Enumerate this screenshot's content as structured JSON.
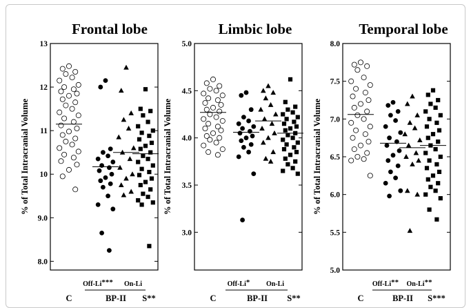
{
  "chart_data": [
    {
      "type": "scatter",
      "title": "Frontal lobe",
      "ylabel": "% of Total Intracranial Volume",
      "ylim": [
        7.8,
        13
      ],
      "yticks": [
        "8.0",
        "9.0",
        "10",
        "11",
        "12",
        "13"
      ],
      "group_labels": {
        "c": "C",
        "bp": "BP-II",
        "s": "S",
        "s_sig": "**",
        "off": "Off-Li",
        "off_sig": "***",
        "on": "On-Li",
        "on_sig": ""
      },
      "series": [
        {
          "name": "C",
          "marker": "open-circle",
          "mean": 11.15,
          "values": [
            12.48,
            12.42,
            12.35,
            12.3,
            12.22,
            12.15,
            12.05,
            12.0,
            11.95,
            11.9,
            11.85,
            11.8,
            11.72,
            11.65,
            11.58,
            11.5,
            11.42,
            11.35,
            11.28,
            11.2,
            11.12,
            11.05,
            10.98,
            10.9,
            10.82,
            10.75,
            10.68,
            10.6,
            10.52,
            10.45,
            10.38,
            10.3,
            10.22,
            10.1,
            9.95,
            9.65
          ]
        },
        {
          "name": "Off-Li",
          "marker": "filled-circle",
          "mean": 10.17,
          "values": [
            12.15,
            12.0,
            10.58,
            10.5,
            10.42,
            10.35,
            10.28,
            10.2,
            10.15,
            10.08,
            10.0,
            9.92,
            9.85,
            9.78,
            9.7,
            9.5,
            9.3,
            9.2,
            8.65,
            8.25
          ]
        },
        {
          "name": "On-Li",
          "marker": "filled-triangle",
          "mean": 10.5,
          "values": [
            12.45,
            11.92,
            11.4,
            11.25,
            11.05,
            10.85,
            10.6,
            10.5,
            10.35,
            10.15,
            10.0,
            9.9,
            9.75,
            9.6,
            9.52
          ]
        },
        {
          "name": "S",
          "marker": "filled-square",
          "mean": 10.47,
          "values": [
            11.95,
            11.5,
            11.45,
            11.35,
            11.2,
            11.1,
            11.0,
            10.95,
            10.88,
            10.8,
            10.72,
            10.65,
            10.58,
            10.5,
            10.42,
            10.35,
            10.28,
            10.2,
            10.12,
            10.05,
            9.98,
            9.9,
            9.82,
            9.75,
            9.65,
            9.55,
            9.48,
            9.4,
            9.35,
            9.3,
            8.35
          ]
        }
      ]
    },
    {
      "type": "scatter",
      "title": "Limbic lobe",
      "ylabel": "% of Total Intracranial Volume",
      "ylim": [
        2.6,
        5
      ],
      "yticks": [
        "3.0",
        "3.5",
        "4.0",
        "4.5",
        "5.0"
      ],
      "group_labels": {
        "c": "C",
        "bp": "BP-II",
        "s": "S",
        "s_sig": "**",
        "off": "Off-Li",
        "off_sig": "*",
        "on": "On-Li",
        "on_sig": ""
      },
      "series": [
        {
          "name": "C",
          "marker": "open-circle",
          "mean": 4.27,
          "values": [
            4.62,
            4.58,
            4.55,
            4.52,
            4.5,
            4.47,
            4.45,
            4.42,
            4.4,
            4.37,
            4.35,
            4.32,
            4.3,
            4.28,
            4.25,
            4.22,
            4.2,
            4.18,
            4.15,
            4.12,
            4.1,
            4.08,
            4.05,
            4.02,
            4.0,
            3.98,
            3.95,
            3.92,
            3.88,
            3.85,
            3.82
          ]
        },
        {
          "name": "Off-Li",
          "marker": "filled-circle",
          "mean": 4.06,
          "values": [
            4.48,
            4.45,
            4.3,
            4.22,
            4.18,
            4.15,
            4.12,
            4.1,
            4.07,
            4.05,
            4.02,
            4.0,
            3.97,
            3.93,
            3.9,
            3.85,
            3.8,
            3.62,
            3.13
          ]
        },
        {
          "name": "On-Li",
          "marker": "filled-triangle",
          "mean": 4.18,
          "values": [
            4.55,
            4.5,
            4.48,
            4.42,
            4.35,
            4.3,
            4.25,
            4.2,
            4.15,
            4.1,
            4.05,
            4.0,
            3.95,
            3.85,
            3.78,
            3.75
          ]
        },
        {
          "name": "S",
          "marker": "filled-square",
          "mean": 4.05,
          "values": [
            4.62,
            4.38,
            4.33,
            4.3,
            4.27,
            4.25,
            4.22,
            4.2,
            4.17,
            4.15,
            4.12,
            4.1,
            4.08,
            4.05,
            4.03,
            4.0,
            3.98,
            3.95,
            3.93,
            3.9,
            3.88,
            3.85,
            3.82,
            3.78,
            3.75,
            3.72,
            3.68,
            3.65,
            3.62
          ]
        }
      ]
    },
    {
      "type": "scatter",
      "title": "Temporal lobe",
      "ylabel": "% of Total Intracranial Volume",
      "ylim": [
        5,
        8
      ],
      "yticks": [
        "5.0",
        "5.5",
        "6.0",
        "6.5",
        "7.0",
        "7.5",
        "8.0"
      ],
      "group_labels": {
        "c": "C",
        "bp": "BP-II",
        "s": "S",
        "s_sig": "***",
        "off": "Off-Li",
        "off_sig": "**",
        "on": "On-Li",
        "on_sig": "**"
      },
      "series": [
        {
          "name": "C",
          "marker": "open-circle",
          "mean": 7.06,
          "values": [
            7.75,
            7.72,
            7.7,
            7.65,
            7.55,
            7.5,
            7.45,
            7.4,
            7.35,
            7.3,
            7.25,
            7.2,
            7.15,
            7.1,
            7.05,
            7.0,
            6.95,
            6.9,
            6.85,
            6.8,
            6.75,
            6.7,
            6.65,
            6.6,
            6.55,
            6.5,
            6.47,
            6.45,
            6.25
          ]
        },
        {
          "name": "Off-Li",
          "marker": "filled-circle",
          "mean": 6.68,
          "values": [
            7.22,
            7.18,
            7.1,
            7.05,
            6.98,
            6.9,
            6.82,
            6.75,
            6.7,
            6.65,
            6.58,
            6.52,
            6.45,
            6.38,
            6.3,
            6.22,
            6.15,
            6.05,
            5.98
          ]
        },
        {
          "name": "On-Li",
          "marker": "filled-triangle",
          "mean": 6.62,
          "values": [
            7.3,
            7.2,
            7.05,
            6.95,
            6.88,
            6.8,
            6.72,
            6.65,
            6.55,
            6.5,
            6.45,
            6.4,
            6.05,
            6.0,
            5.52
          ]
        },
        {
          "name": "S",
          "marker": "filled-square",
          "mean": 6.65,
          "values": [
            7.38,
            7.32,
            7.25,
            7.2,
            7.15,
            7.1,
            7.05,
            7.0,
            6.95,
            6.9,
            6.85,
            6.8,
            6.75,
            6.7,
            6.65,
            6.6,
            6.55,
            6.5,
            6.45,
            6.4,
            6.35,
            6.3,
            6.25,
            6.2,
            6.15,
            6.1,
            6.05,
            6.0,
            5.95,
            5.8,
            5.67
          ]
        }
      ]
    }
  ]
}
